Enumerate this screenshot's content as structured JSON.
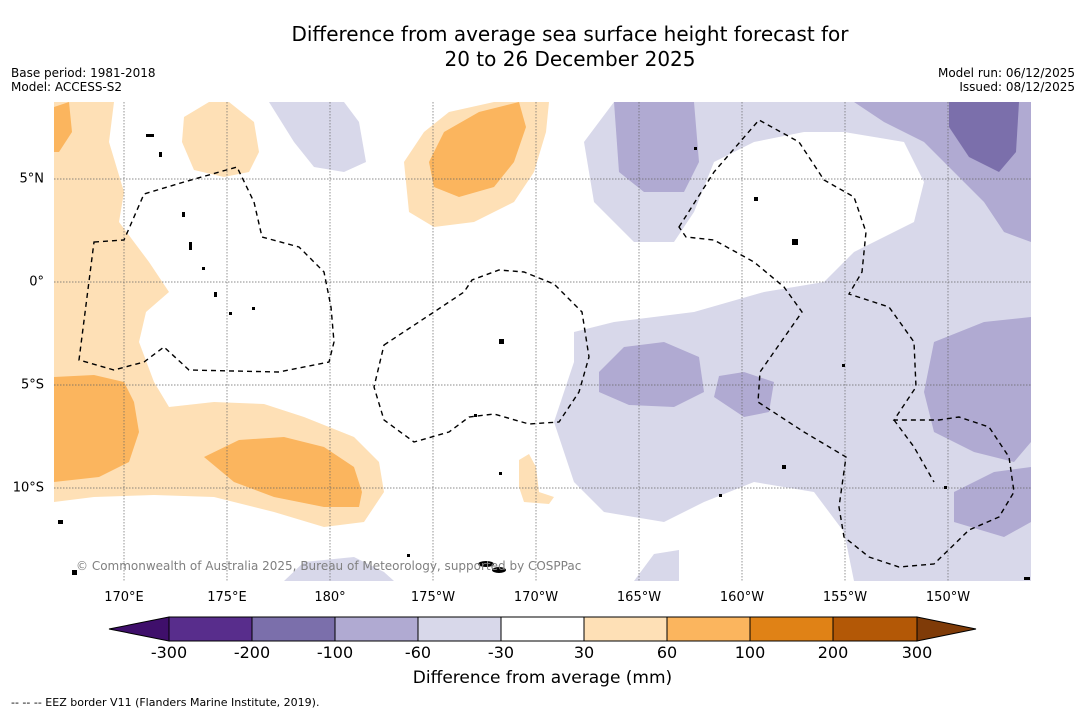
{
  "title": {
    "line1": "Difference from average sea surface height forecast for",
    "line2": "20 to 26 December 2025"
  },
  "meta": {
    "base_period": "Base period: 1981-2018",
    "model": "Model: ACCESS-S2",
    "model_run": "Model run: 06/12/2025",
    "issued": "Issued: 08/12/2025"
  },
  "map": {
    "lat_labels": [
      "5°N",
      "0°",
      "5°S",
      "10°S"
    ],
    "lon_labels": [
      "170°E",
      "175°E",
      "180°",
      "175°W",
      "170°W",
      "165°W",
      "160°W",
      "155°W",
      "150°W"
    ],
    "copyright": "© Commonwealth of Australia 2025, Bureau of Meteorology, supported by COSPPac"
  },
  "colorbar": {
    "tick_labels": [
      "-300",
      "-200",
      "-100",
      "-60",
      "-30",
      "30",
      "60",
      "100",
      "200",
      "300"
    ],
    "colors": [
      "#3f0f6b",
      "#582d8c",
      "#7b6fab",
      "#b0aad2",
      "#d8d8ea",
      "#ffffff",
      "#fee0b6",
      "#fbb55e",
      "#e08216",
      "#b35806",
      "#7f3b08"
    ],
    "label": "Difference from average (mm)"
  },
  "legend": {
    "eez_text": "-- -- -- EEZ border V11 (Flanders Marine Institute, 2019)."
  }
}
